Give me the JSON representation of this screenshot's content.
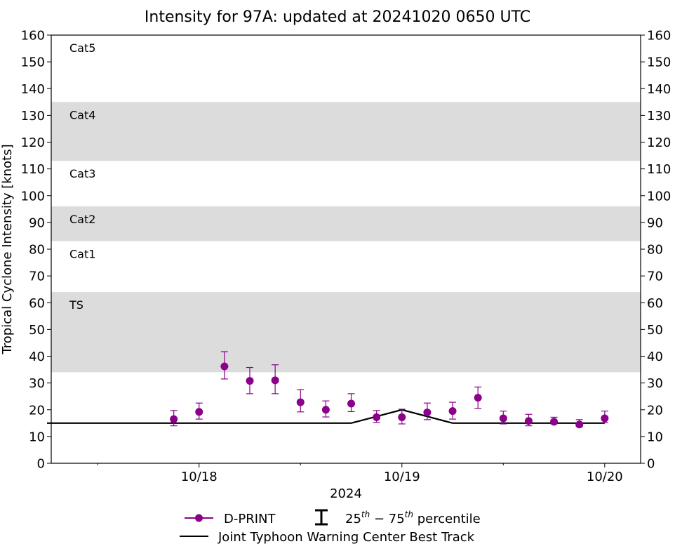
{
  "chart_data": {
    "type": "scatter",
    "title": "Intensity for 97A: updated at 20241020 0650 UTC",
    "ylabel": "Tropical Cyclone Intensity [knots]",
    "xlabel": "2024",
    "ylim": [
      0,
      160
    ],
    "yticks": [
      0,
      10,
      20,
      30,
      40,
      50,
      60,
      70,
      80,
      90,
      100,
      110,
      120,
      130,
      140,
      150,
      160
    ],
    "xlim_hours": [
      -17.5,
      52.25
    ],
    "xticks": [
      {
        "hour": 0,
        "label": "10/18"
      },
      {
        "hour": 24,
        "label": "10/19"
      },
      {
        "hour": 48,
        "label": "10/20"
      }
    ],
    "minor_xticks": [
      -12,
      12,
      36
    ],
    "bands": [
      {
        "label": "TS",
        "lower": 34,
        "upper": 64,
        "shaded": true
      },
      {
        "label": "Cat1",
        "lower": 64,
        "upper": 83,
        "shaded": false
      },
      {
        "label": "Cat2",
        "lower": 83,
        "upper": 96,
        "shaded": true
      },
      {
        "label": "Cat3",
        "lower": 96,
        "upper": 113,
        "shaded": false
      },
      {
        "label": "Cat4",
        "lower": 113,
        "upper": 135,
        "shaded": true
      },
      {
        "label": "Cat5",
        "lower": 135,
        "upper": 160,
        "shaded": false
      }
    ],
    "series": [
      {
        "name": "D-PRINT",
        "color": "#8b008b",
        "x_hours": [
          -3,
          0,
          3,
          6,
          9,
          12,
          15,
          18,
          21,
          24,
          27,
          30,
          33,
          36,
          39,
          42,
          45,
          48
        ],
        "values": [
          16.5,
          19.2,
          36.2,
          30.8,
          31.0,
          22.8,
          20.0,
          22.3,
          17.2,
          17.2,
          19.0,
          19.5,
          24.5,
          16.8,
          15.8,
          15.5,
          14.5,
          16.8
        ],
        "p25": [
          14,
          16.5,
          31.5,
          26,
          26,
          19.2,
          17.3,
          19.3,
          15.3,
          14.7,
          16.3,
          16.5,
          20.5,
          14.7,
          14,
          14.7,
          13.7,
          15.2
        ],
        "p75": [
          19.7,
          22.5,
          41.7,
          35.8,
          36.8,
          27.5,
          23.3,
          26,
          19.7,
          20.2,
          22.5,
          22.8,
          28.5,
          19.5,
          18.3,
          17.2,
          16.3,
          19.5
        ]
      },
      {
        "name": "Joint Typhoon Warning Center Best Track",
        "color": "#000000",
        "x_hours": [
          -18,
          18,
          24,
          30,
          48
        ],
        "values": [
          15,
          15,
          20,
          15,
          15
        ]
      }
    ],
    "legend": {
      "placement": "bottom-center",
      "dprint_label": "D-PRINT",
      "percentile_label": "percentile",
      "percentile_lo": "25",
      "percentile_hi": "75",
      "percentile_sup": "th",
      "best_track_label": "Joint Typhoon Warning Center Best Track"
    }
  }
}
